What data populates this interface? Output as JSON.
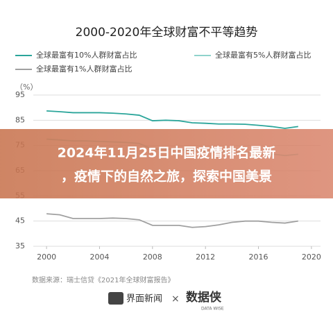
{
  "chart_data": {
    "type": "line",
    "title": "2000-2020年全球财富不平等趋势",
    "y_label": "（%）",
    "x": [
      2000,
      2001,
      2002,
      2003,
      2004,
      2005,
      2006,
      2007,
      2008,
      2009,
      2010,
      2011,
      2012,
      2013,
      2014,
      2015,
      2016,
      2017,
      2018,
      2019
    ],
    "series": [
      {
        "name": "全球最富有10%人群财富占比",
        "color": "#2aa59a",
        "values": [
          88.7,
          88.4,
          88.0,
          88.0,
          88.0,
          87.8,
          87.5,
          87.0,
          84.8,
          85.0,
          84.8,
          84.0,
          83.8,
          83.5,
          83.5,
          83.4,
          83.0,
          82.5,
          81.8,
          82.5
        ]
      },
      {
        "name": "全球最富有5%人群财富占比",
        "color": "#8fd3cc",
        "values": [
          77.5,
          77.2,
          76.8,
          76.8,
          76.6,
          76.4,
          76.2,
          75.8,
          73.5,
          73.6,
          73.4,
          72.8,
          72.6,
          72.4,
          72.4,
          72.3,
          72.0,
          71.6,
          71.0,
          71.5
        ]
      },
      {
        "name": "全球最富有1%人群财富占比",
        "color": "#a0a0a0",
        "values": [
          47.9,
          47.5,
          46.0,
          46.0,
          46.0,
          46.2,
          46.0,
          45.5,
          43.3,
          43.3,
          43.3,
          42.5,
          42.8,
          43.5,
          44.5,
          45.0,
          45.0,
          44.5,
          44.2,
          45.0
        ]
      }
    ],
    "xlim": [
      1999,
      2021
    ],
    "xticks": [
      2000,
      2004,
      2008,
      2012,
      2016,
      2020
    ],
    "ylim": [
      35,
      95
    ],
    "yticks": [
      35,
      45,
      55,
      65,
      75,
      85,
      95
    ],
    "grid": true,
    "source": "数据来源：瑞士信贷《2021年全球财富报告》"
  },
  "footer": {
    "brand_left": "界面新闻",
    "brand_right": "数据侠",
    "brand_right_sub": "DATA WISE"
  },
  "banner": {
    "lines": [
      "2024年11月25日中国疫情排名最新",
      "，疫情下的自然之旅，探索中国美景"
    ]
  }
}
